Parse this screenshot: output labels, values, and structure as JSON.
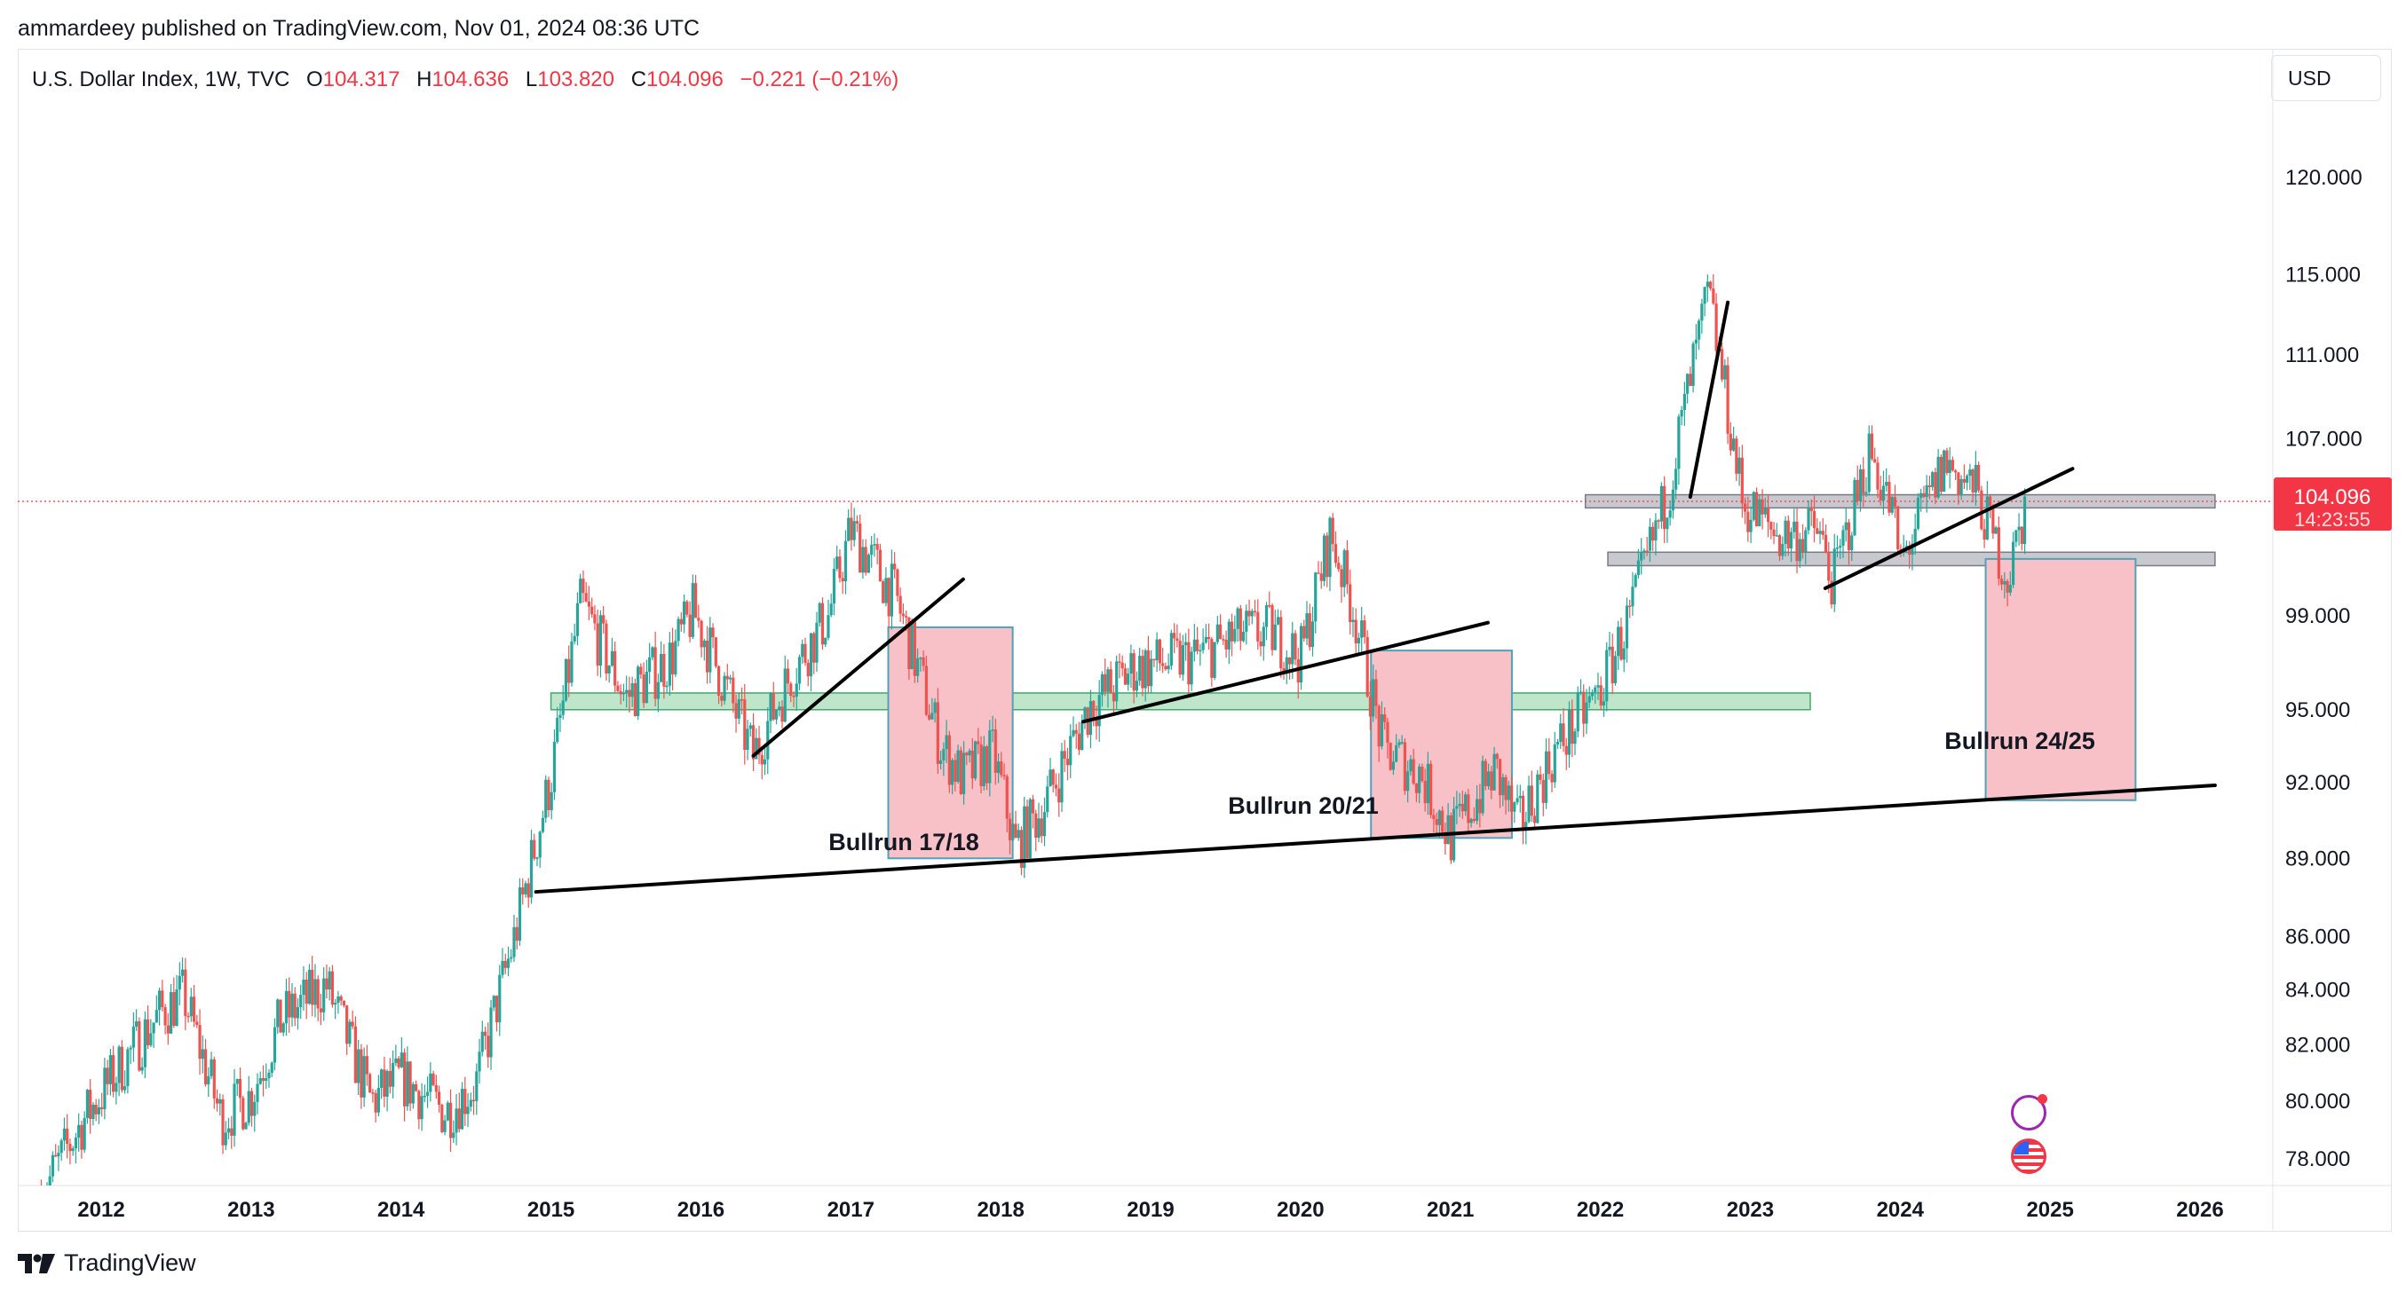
{
  "header": {
    "publisher_line": "ammardeey published on TradingView.com, Nov 01, 2024 08:36 UTC"
  },
  "symbol": {
    "title": "U.S. Dollar Index, 1W, TVC",
    "open_label": "O",
    "open": "104.317",
    "high_label": "H",
    "high": "104.636",
    "low_label": "L",
    "low": "103.820",
    "close_label": "C",
    "close": "104.096",
    "change": "−0.221 (−0.21%)"
  },
  "currency_button": "USD",
  "price_tag": {
    "price": "104.096",
    "countdown": "14:23:55",
    "color": "#f23645"
  },
  "footer": {
    "brand": "TradingView"
  },
  "colors": {
    "up": "#26a69a",
    "down": "#ef5350",
    "zone_red": "#f7c1c7",
    "zone_green": "#bfe6cb",
    "resistance_gray": "#c8c8cf"
  },
  "icons": [
    "flash-icon",
    "us-flag-icon",
    "tradingview-logo-icon"
  ],
  "chart_data": {
    "type": "candlestick",
    "timeframe": "1W",
    "x_ticks": [
      "2012",
      "2013",
      "2014",
      "2015",
      "2016",
      "2017",
      "2018",
      "2019",
      "2020",
      "2021",
      "2022",
      "2023",
      "2024",
      "2025",
      "2026"
    ],
    "y_ticks": [
      "120.000",
      "115.000",
      "111.000",
      "107.000",
      "99.000",
      "95.000",
      "92.000",
      "89.000",
      "86.000",
      "84.000",
      "82.000",
      "80.000",
      "78.000"
    ],
    "y_scale": "log",
    "last_price": 104.096,
    "price_path": [
      [
        2011.6,
        76.8
      ],
      [
        2011.9,
        79.5
      ],
      [
        2012.1,
        81.0
      ],
      [
        2012.4,
        83.2
      ],
      [
        2012.55,
        83.8
      ],
      [
        2012.8,
        79.4
      ],
      [
        2013.0,
        80.2
      ],
      [
        2013.2,
        82.9
      ],
      [
        2013.5,
        84.2
      ],
      [
        2013.8,
        80.0
      ],
      [
        2014.0,
        80.8
      ],
      [
        2014.3,
        79.6
      ],
      [
        2014.5,
        80.6
      ],
      [
        2014.75,
        85.8
      ],
      [
        2015.0,
        92.2
      ],
      [
        2015.2,
        99.6
      ],
      [
        2015.5,
        95.5
      ],
      [
        2015.8,
        97.2
      ],
      [
        2015.95,
        99.2
      ],
      [
        2016.35,
        93.1
      ],
      [
        2016.6,
        96.5
      ],
      [
        2016.85,
        99.0
      ],
      [
        2017.0,
        102.8
      ],
      [
        2017.3,
        99.8
      ],
      [
        2017.6,
        93.5
      ],
      [
        2017.75,
        92.2
      ],
      [
        2017.95,
        93.2
      ],
      [
        2018.1,
        89.4
      ],
      [
        2018.3,
        91.2
      ],
      [
        2018.6,
        95.2
      ],
      [
        2018.9,
        96.8
      ],
      [
        2019.3,
        97.2
      ],
      [
        2019.6,
        98.2
      ],
      [
        2019.8,
        98.3
      ],
      [
        2020.0,
        97.2
      ],
      [
        2020.2,
        102.6
      ],
      [
        2020.35,
        99.4
      ],
      [
        2020.55,
        93.4
      ],
      [
        2020.8,
        92.4
      ],
      [
        2021.0,
        89.8
      ],
      [
        2021.3,
        92.5
      ],
      [
        2021.45,
        90.2
      ],
      [
        2021.7,
        93.3
      ],
      [
        2022.0,
        95.8
      ],
      [
        2022.2,
        99.0
      ],
      [
        2022.45,
        104.5
      ],
      [
        2022.72,
        114.0
      ],
      [
        2022.95,
        104.0
      ],
      [
        2023.2,
        102.5
      ],
      [
        2023.45,
        102.8
      ],
      [
        2023.55,
        100.4
      ],
      [
        2023.8,
        106.5
      ],
      [
        2023.95,
        103.5
      ],
      [
        2024.0,
        101.3
      ],
      [
        2024.3,
        105.9
      ],
      [
        2024.5,
        104.6
      ],
      [
        2024.72,
        100.6
      ],
      [
        2024.84,
        104.1
      ]
    ],
    "horizontal_zones": [
      {
        "name": "green-support-zone",
        "from_year": 2015.0,
        "to_year": 2023.4,
        "low": 95.0,
        "high": 95.7,
        "color": "#bfe6cb"
      },
      {
        "name": "gray-resistance-upper",
        "from_year": 2021.9,
        "to_year": 2026.1,
        "low": 103.8,
        "high": 104.4,
        "color": "#c8c8cf"
      },
      {
        "name": "gray-resistance-lower",
        "from_year": 2022.05,
        "to_year": 2026.1,
        "low": 101.2,
        "high": 101.8,
        "color": "#c8c8cf"
      }
    ],
    "boxes": [
      {
        "label": "Bullrun 17/18",
        "from_year": 2017.25,
        "to_year": 2018.08,
        "low": 89.0,
        "high": 98.5
      },
      {
        "label": "Bullrun 20/21",
        "from_year": 2020.47,
        "to_year": 2021.41,
        "low": 89.8,
        "high": 97.5
      },
      {
        "label": "Bullrun 24/25",
        "from_year": 2024.57,
        "to_year": 2025.57,
        "low": 91.3,
        "high": 101.5
      }
    ],
    "trendlines": [
      {
        "name": "long-term-support",
        "from": [
          2014.9,
          87.7
        ],
        "to": [
          2026.1,
          91.9
        ]
      },
      {
        "name": "trendline-2016",
        "from": [
          2016.35,
          93.1
        ],
        "to": [
          2017.75,
          100.6
        ]
      },
      {
        "name": "trendline-2018-2020",
        "from": [
          2018.55,
          94.5
        ],
        "to": [
          2021.25,
          98.7
        ]
      },
      {
        "name": "trendline-2022",
        "from": [
          2022.6,
          104.3
        ],
        "to": [
          2022.85,
          113.6
        ]
      },
      {
        "name": "trendline-2023-2024",
        "from": [
          2023.5,
          100.2
        ],
        "to": [
          2025.15,
          105.6
        ]
      }
    ]
  }
}
